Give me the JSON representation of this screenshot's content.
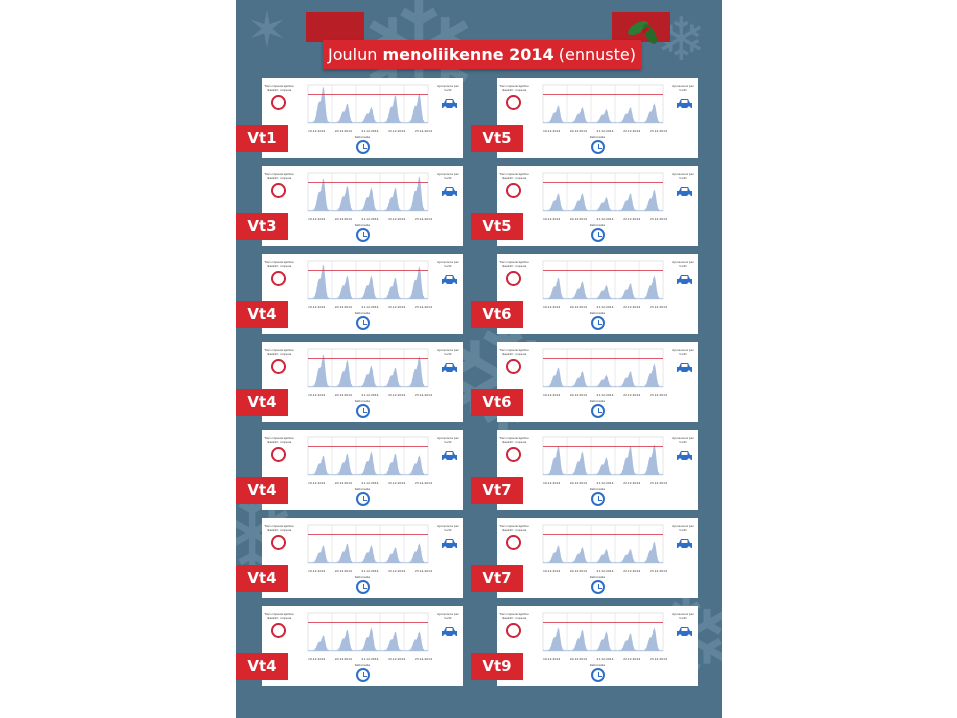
{
  "title": {
    "regular": "Joulun ",
    "bold": "menoliikenne 2014",
    "suffix": " (ennuste)"
  },
  "labels": {
    "left_axis": "Tien nopeusrajoitus /keskim. nopeus",
    "right_axis": "Ajoneuvoa per tunti",
    "x_axis": "Kellonaika"
  },
  "dates": [
    "19.12.2014",
    "20.12.2014",
    "21.12.2014",
    "22.12.2014",
    "23.12.2014"
  ],
  "colors": {
    "background": "#4d7189",
    "ribbon": "#d8262f",
    "area": "#a9bedc",
    "limit_line": "#d0223a",
    "icon_blue": "#2d6fc6"
  },
  "chart_data": [
    {
      "road": "Vt1",
      "type": "area",
      "daily_peaks": [
        0.95,
        0.5,
        0.4,
        0.72,
        0.76
      ],
      "limit": 0.75
    },
    {
      "road": "Vt3",
      "type": "area",
      "daily_peaks": [
        0.85,
        0.65,
        0.6,
        0.6,
        0.9
      ],
      "limit": 0.75
    },
    {
      "road": "Vt4",
      "type": "area",
      "daily_peaks": [
        0.9,
        0.6,
        0.6,
        0.55,
        0.85
      ],
      "limit": 0.75
    },
    {
      "road": "Vt4",
      "type": "area",
      "daily_peaks": [
        0.85,
        0.7,
        0.55,
        0.5,
        0.8
      ],
      "limit": 0.75
    },
    {
      "road": "Vt4",
      "type": "area",
      "daily_peaks": [
        0.5,
        0.55,
        0.6,
        0.55,
        0.5
      ],
      "limit": 0.75
    },
    {
      "road": "Vt4",
      "type": "area",
      "daily_peaks": [
        0.45,
        0.5,
        0.45,
        0.4,
        0.5
      ],
      "limit": 0.75
    },
    {
      "road": "Vt4",
      "type": "area",
      "daily_peaks": [
        0.4,
        0.55,
        0.6,
        0.5,
        0.5
      ],
      "limit": 0.75
    },
    {
      "road": "Vt5",
      "type": "area",
      "daily_peaks": [
        0.45,
        0.4,
        0.35,
        0.4,
        0.5
      ],
      "limit": 0.75
    },
    {
      "road": "Vt5",
      "type": "area",
      "daily_peaks": [
        0.45,
        0.45,
        0.35,
        0.45,
        0.55
      ],
      "limit": 0.75
    },
    {
      "road": "Vt6",
      "type": "area",
      "daily_peaks": [
        0.55,
        0.45,
        0.35,
        0.4,
        0.6
      ],
      "limit": 0.75
    },
    {
      "road": "Vt6",
      "type": "area",
      "daily_peaks": [
        0.5,
        0.4,
        0.3,
        0.4,
        0.6
      ],
      "limit": 0.75
    },
    {
      "road": "Vt7",
      "type": "area",
      "daily_peaks": [
        0.76,
        0.6,
        0.45,
        0.76,
        0.8
      ],
      "limit": 0.75
    },
    {
      "road": "Vt7",
      "type": "area",
      "daily_peaks": [
        0.45,
        0.4,
        0.35,
        0.35,
        0.55
      ],
      "limit": 0.75
    },
    {
      "road": "Vt9",
      "type": "area",
      "daily_peaks": [
        0.6,
        0.55,
        0.5,
        0.45,
        0.6
      ],
      "limit": 0.75
    }
  ]
}
